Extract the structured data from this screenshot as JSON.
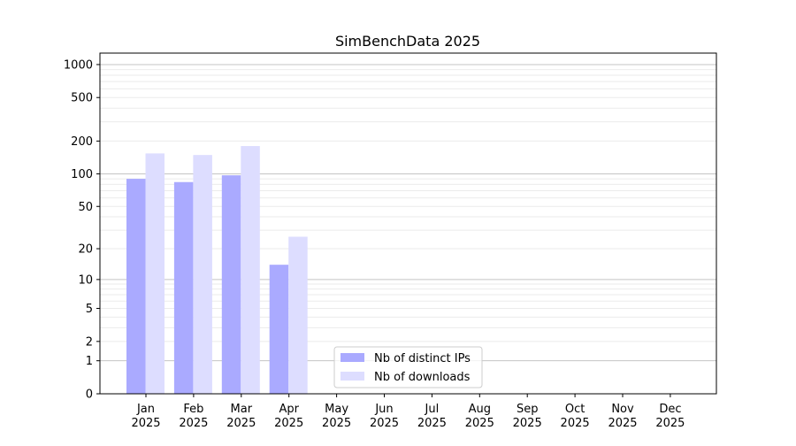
{
  "chart_data": {
    "type": "bar",
    "title": "SimBenchData 2025",
    "xlabel": "",
    "ylabel": "",
    "yscale": "log10(1+y)",
    "ylim": [
      0,
      1200
    ],
    "grid": true,
    "legend_position": "bottom-center",
    "categories": [
      "Jan\n2025",
      "Feb\n2025",
      "Mar\n2025",
      "Apr\n2025",
      "May\n2025",
      "Jun\n2025",
      "Jul\n2025",
      "Aug\n2025",
      "Sep\n2025",
      "Oct\n2025",
      "Nov\n2025",
      "Dec\n2025"
    ],
    "ytick_labels": [
      "0",
      "1",
      "2",
      "5",
      "10",
      "20",
      "50",
      "100",
      "200",
      "500",
      "1000"
    ],
    "yticks": [
      0,
      1,
      2,
      5,
      10,
      20,
      50,
      100,
      200,
      500,
      1000
    ],
    "series": [
      {
        "name": "Nb of distinct IPs",
        "color": "#aaaaff",
        "values": [
          90,
          84,
          97,
          14,
          null,
          null,
          null,
          null,
          null,
          null,
          null,
          null
        ]
      },
      {
        "name": "Nb of downloads",
        "color": "#ddddff",
        "values": [
          154,
          149,
          180,
          26,
          null,
          null,
          null,
          null,
          null,
          null,
          null,
          null
        ]
      }
    ]
  }
}
